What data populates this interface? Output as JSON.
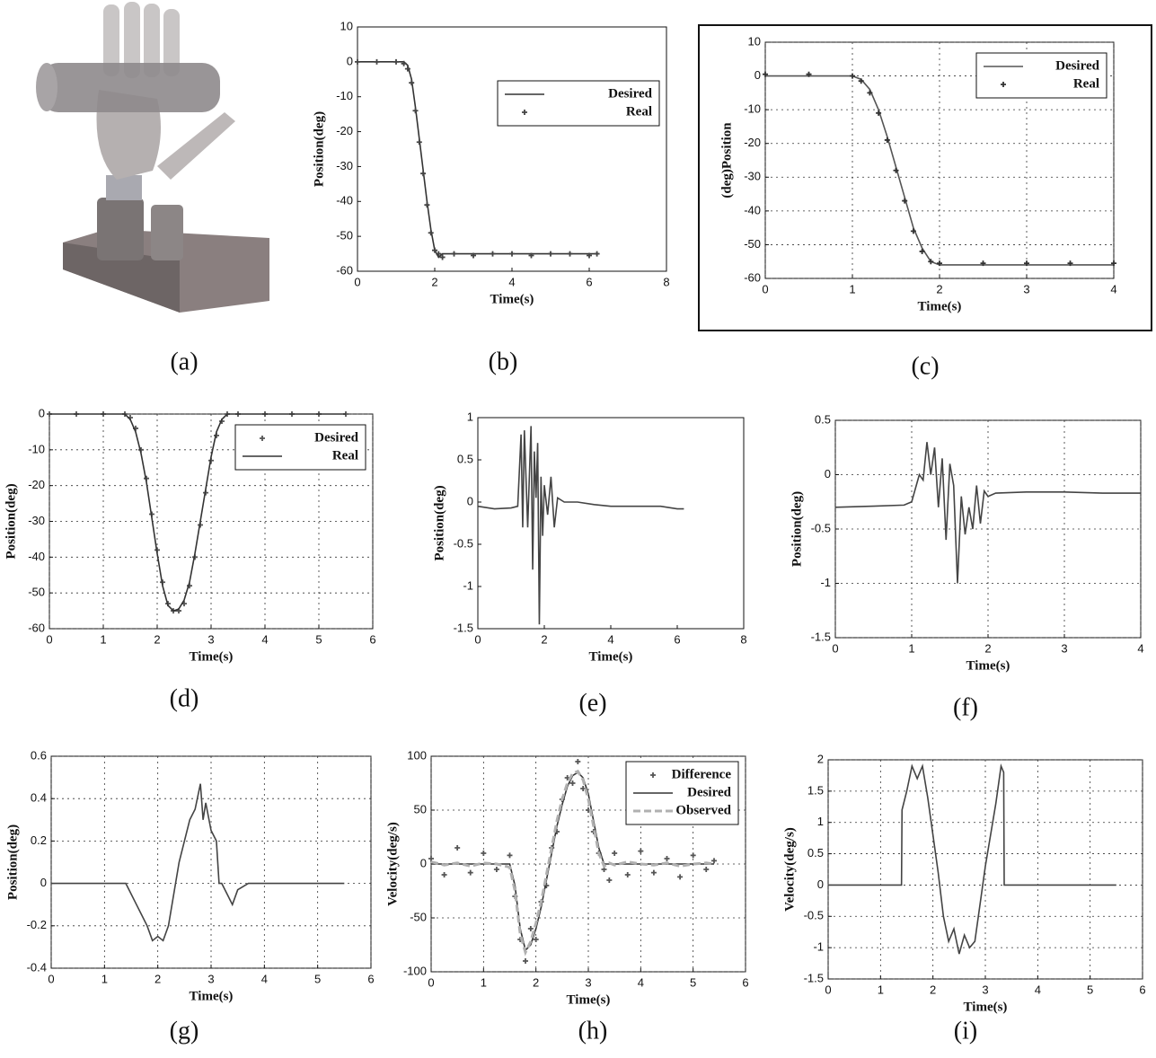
{
  "figure_a": {
    "caption": "(a)"
  },
  "chart_data": [
    {
      "type": "line",
      "caption": "(b)",
      "xlabel": "Time(s)",
      "ylabel": "Position(deg)",
      "grid": false,
      "legend": "upper right",
      "xlim": [
        0,
        8
      ],
      "ylim": [
        -60,
        10
      ],
      "xticks": [
        0,
        2,
        4,
        6,
        8
      ],
      "yticks": [
        10,
        0,
        -10,
        -20,
        -30,
        -40,
        -50,
        -60
      ],
      "x": [
        0,
        0.5,
        1,
        1.2,
        1.3,
        1.4,
        1.5,
        1.6,
        1.7,
        1.8,
        1.9,
        2,
        2.1,
        2.2,
        2.5,
        3,
        3.5,
        4,
        4.5,
        5,
        5.5,
        6,
        6.2
      ],
      "series": [
        {
          "name": "Desired",
          "color": "#333333",
          "style": "line",
          "values": [
            0,
            0,
            0,
            0,
            -1,
            -5,
            -13,
            -22,
            -31,
            -40,
            -48,
            -54,
            -56,
            -55,
            -55,
            -55,
            -55,
            -55,
            -55,
            -55,
            -55,
            -55,
            -55
          ]
        },
        {
          "name": "Real",
          "color": "#444444",
          "style": "markers",
          "values": [
            0,
            0,
            0,
            -0.5,
            -2,
            -6,
            -14,
            -23,
            -32,
            -41,
            -49,
            -54,
            -55,
            -56,
            -55,
            -55.5,
            -55,
            -55,
            -55.5,
            -55,
            -55,
            -55.5,
            -55
          ]
        }
      ]
    },
    {
      "type": "line",
      "caption": "(c)",
      "xlabel": "Time(s)",
      "ylabel": "(deg)Position",
      "grid": true,
      "legend": "upper right",
      "xlim": [
        0,
        4
      ],
      "ylim": [
        -60,
        10
      ],
      "xticks": [
        0,
        1,
        2,
        3,
        4
      ],
      "yticks": [
        10,
        0,
        -10,
        -20,
        -30,
        -40,
        -50,
        -60
      ],
      "x": [
        0,
        0.5,
        1,
        1.1,
        1.2,
        1.3,
        1.4,
        1.5,
        1.6,
        1.7,
        1.8,
        1.9,
        2,
        2.5,
        3,
        3.5,
        4
      ],
      "series": [
        {
          "name": "Desired",
          "color": "#555555",
          "style": "line",
          "values": [
            0,
            0,
            0,
            -1,
            -4,
            -10,
            -18,
            -27,
            -36,
            -45,
            -51,
            -55,
            -56,
            -56,
            -56,
            -56,
            -56
          ]
        },
        {
          "name": "Real",
          "color": "#333333",
          "style": "markers",
          "values": [
            0.5,
            0.5,
            0,
            -1.5,
            -5,
            -11,
            -19,
            -28,
            -37,
            -46,
            -52,
            -55,
            -55.5,
            -55.5,
            -55.5,
            -55.5,
            -55.5
          ]
        }
      ]
    },
    {
      "type": "line",
      "caption": "(d)",
      "xlabel": "Time(s)",
      "ylabel": "Position(deg)",
      "grid": true,
      "legend": "upper right",
      "xlim": [
        0,
        6
      ],
      "ylim": [
        -60,
        0
      ],
      "xticks": [
        0,
        1,
        2,
        3,
        4,
        5,
        6
      ],
      "yticks": [
        0,
        -10,
        -20,
        -30,
        -40,
        -50,
        -60
      ],
      "x": [
        0,
        0.5,
        1,
        1.4,
        1.5,
        1.6,
        1.7,
        1.8,
        1.9,
        2,
        2.1,
        2.2,
        2.3,
        2.4,
        2.5,
        2.6,
        2.7,
        2.8,
        2.9,
        3,
        3.1,
        3.2,
        3.3,
        3.5,
        4,
        4.5,
        5,
        5.5
      ],
      "series": [
        {
          "name": "Desired",
          "color": "#555555",
          "style": "markers",
          "values": [
            0,
            0,
            0,
            0,
            -1,
            -4,
            -10,
            -18,
            -28,
            -38,
            -47,
            -53,
            -55,
            -55,
            -53,
            -48,
            -40,
            -31,
            -22,
            -13,
            -6,
            -2,
            0,
            0,
            0,
            0,
            0,
            0
          ]
        },
        {
          "name": "Real",
          "color": "#333333",
          "style": "line",
          "values": [
            0,
            0,
            0,
            0,
            -1.5,
            -5,
            -11,
            -19,
            -29,
            -39,
            -48,
            -53.5,
            -55,
            -54.5,
            -52,
            -47,
            -39,
            -30,
            -21,
            -12,
            -5,
            -1.5,
            0,
            0,
            0,
            0,
            0,
            0
          ]
        }
      ]
    },
    {
      "type": "line",
      "caption": "(e)",
      "xlabel": "Time(s)",
      "ylabel": "Position(deg)",
      "grid": false,
      "xlim": [
        0,
        8
      ],
      "ylim": [
        -1.5,
        1
      ],
      "xticks": [
        0,
        2,
        4,
        6,
        8
      ],
      "yticks": [
        1,
        0.5,
        0,
        -0.5,
        -1,
        -1.5
      ],
      "x": [
        0,
        0.5,
        1,
        1.2,
        1.3,
        1.35,
        1.4,
        1.5,
        1.6,
        1.65,
        1.7,
        1.75,
        1.8,
        1.85,
        1.9,
        1.95,
        2,
        2.1,
        2.2,
        2.3,
        2.4,
        2.6,
        3,
        3.5,
        4,
        4.5,
        5,
        5.5,
        6,
        6.2
      ],
      "series": [
        {
          "color": "#444444",
          "style": "line",
          "values": [
            -0.05,
            -0.08,
            -0.07,
            -0.05,
            0.8,
            -0.3,
            0.85,
            -0.3,
            0.9,
            -0.8,
            0.6,
            0.05,
            0.7,
            -1.45,
            0.3,
            -0.4,
            0.2,
            -0.15,
            0.3,
            -0.3,
            0.05,
            0,
            0,
            -0.03,
            -0.05,
            -0.05,
            -0.05,
            -0.05,
            -0.08,
            -0.08
          ]
        }
      ]
    },
    {
      "type": "line",
      "caption": "(f)",
      "xlabel": "Time(s)",
      "ylabel": "Position(deg)",
      "grid": true,
      "xlim": [
        0,
        4
      ],
      "ylim": [
        -1.5,
        0.5
      ],
      "xticks": [
        0,
        1,
        2,
        3,
        4
      ],
      "yticks": [
        0.5,
        0,
        -0.5,
        -1,
        -1.5
      ],
      "x": [
        0,
        0.5,
        0.9,
        1,
        1.1,
        1.15,
        1.2,
        1.25,
        1.3,
        1.35,
        1.4,
        1.45,
        1.5,
        1.55,
        1.6,
        1.65,
        1.7,
        1.75,
        1.8,
        1.85,
        1.9,
        1.95,
        2,
        2.1,
        2.5,
        3,
        3.5,
        4
      ],
      "series": [
        {
          "color": "#444444",
          "style": "line",
          "values": [
            -0.3,
            -0.29,
            -0.28,
            -0.25,
            0,
            -0.05,
            0.3,
            0,
            0.25,
            -0.3,
            0.15,
            -0.6,
            0.1,
            -0.1,
            -1,
            -0.2,
            -0.55,
            -0.3,
            -0.5,
            -0.1,
            -0.45,
            -0.15,
            -0.2,
            -0.17,
            -0.16,
            -0.16,
            -0.17,
            -0.17
          ]
        }
      ]
    },
    {
      "type": "line",
      "caption": "(g)",
      "xlabel": "Time(s)",
      "ylabel": "Position(deg)",
      "grid": true,
      "xlim": [
        0,
        6
      ],
      "ylim": [
        -0.4,
        0.6
      ],
      "xticks": [
        0,
        1,
        2,
        3,
        4,
        5,
        6
      ],
      "yticks": [
        0.6,
        0.4,
        0.2,
        0,
        -0.2,
        -0.4
      ],
      "x": [
        0,
        0.5,
        1,
        1.4,
        1.6,
        1.8,
        1.9,
        2,
        2.1,
        2.2,
        2.4,
        2.6,
        2.7,
        2.8,
        2.85,
        2.9,
        3,
        3.1,
        3.15,
        3.2,
        3.3,
        3.4,
        3.5,
        3.7,
        4,
        4.5,
        5,
        5.5
      ],
      "series": [
        {
          "color": "#444444",
          "style": "line",
          "values": [
            0,
            0,
            0,
            0,
            -0.1,
            -0.2,
            -0.27,
            -0.25,
            -0.27,
            -0.2,
            0.1,
            0.3,
            0.35,
            0.47,
            0.3,
            0.38,
            0.25,
            0.2,
            0,
            0,
            -0.05,
            -0.1,
            -0.03,
            0,
            0,
            0,
            0,
            0
          ]
        }
      ]
    },
    {
      "type": "line",
      "caption": "(h)",
      "xlabel": "Time(s)",
      "ylabel": "Velocity(deg/s)",
      "grid": true,
      "legend": "upper right",
      "xlim": [
        0,
        6
      ],
      "ylim": [
        -100,
        100
      ],
      "xticks": [
        0,
        1,
        2,
        3,
        4,
        5,
        6
      ],
      "yticks": [
        100,
        50,
        0,
        -50,
        -100
      ],
      "x": [
        0,
        0.25,
        0.5,
        0.75,
        1,
        1.25,
        1.5,
        1.6,
        1.7,
        1.8,
        1.9,
        2,
        2.1,
        2.2,
        2.3,
        2.4,
        2.5,
        2.6,
        2.7,
        2.8,
        2.9,
        3,
        3.1,
        3.2,
        3.3,
        3.4,
        3.5,
        3.75,
        4,
        4.25,
        4.5,
        4.75,
        5,
        5.25,
        5.4
      ],
      "series": [
        {
          "name": "Difference",
          "color": "#555555",
          "style": "markers",
          "values": [
            5,
            -10,
            15,
            -8,
            10,
            -5,
            8,
            -30,
            -70,
            -90,
            -60,
            -70,
            -35,
            -20,
            15,
            30,
            60,
            80,
            75,
            95,
            70,
            50,
            30,
            10,
            -5,
            -15,
            10,
            -10,
            12,
            -8,
            5,
            -12,
            8,
            -5,
            3
          ]
        },
        {
          "name": "Desired",
          "color": "#333333",
          "style": "line",
          "values": [
            0,
            0,
            0,
            0,
            0,
            0,
            0,
            -20,
            -60,
            -80,
            -75,
            -60,
            -40,
            -15,
            10,
            35,
            55,
            72,
            82,
            85,
            80,
            65,
            40,
            15,
            0,
            0,
            0,
            0,
            0,
            0,
            0,
            0,
            0,
            0,
            0
          ]
        },
        {
          "name": "Observed",
          "color": "#b0b0b0",
          "style": "dashed",
          "values": [
            2,
            -1,
            1,
            -2,
            1,
            0,
            -3,
            -25,
            -65,
            -82,
            -72,
            -55,
            -35,
            -10,
            15,
            40,
            60,
            75,
            84,
            86,
            78,
            60,
            35,
            10,
            -2,
            1,
            -1,
            2,
            0,
            -1,
            1,
            -2,
            0,
            1,
            0
          ]
        }
      ]
    },
    {
      "type": "line",
      "caption": "(i)",
      "xlabel": "Time(s)",
      "ylabel": "Velocity(deg/s)",
      "grid": true,
      "xlim": [
        0,
        6
      ],
      "ylim": [
        -1.5,
        2
      ],
      "xticks": [
        0,
        1,
        2,
        3,
        4,
        5,
        6
      ],
      "yticks": [
        2,
        1.5,
        1,
        0.5,
        0,
        -0.5,
        -1,
        -1.5
      ],
      "x": [
        0,
        0.5,
        1,
        1.4,
        1.41,
        1.5,
        1.6,
        1.7,
        1.8,
        1.9,
        2,
        2.1,
        2.2,
        2.3,
        2.4,
        2.5,
        2.6,
        2.7,
        2.8,
        2.9,
        3,
        3.1,
        3.2,
        3.3,
        3.35,
        3.36,
        4,
        4.5,
        5,
        5.5
      ],
      "series": [
        {
          "color": "#444444",
          "style": "line",
          "values": [
            0,
            0,
            0,
            0,
            1.2,
            1.5,
            1.9,
            1.7,
            1.9,
            1.4,
            0.8,
            0.2,
            -0.5,
            -0.9,
            -0.7,
            -1.1,
            -0.8,
            -1,
            -0.9,
            -0.3,
            0.3,
            0.8,
            1.3,
            1.9,
            1.8,
            0,
            0,
            0,
            0,
            0
          ]
        }
      ]
    }
  ]
}
